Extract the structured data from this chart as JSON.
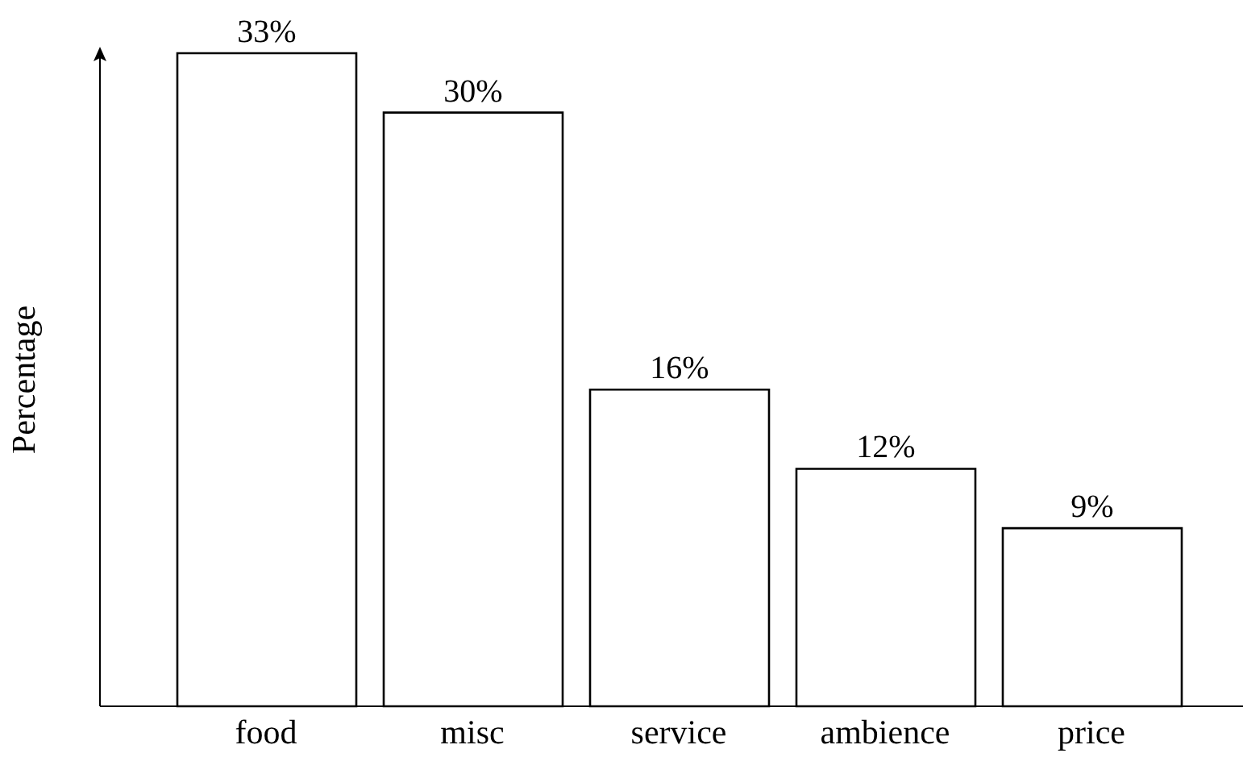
{
  "chart_data": {
    "type": "bar",
    "ylabel": "Percentage",
    "categories": [
      "food",
      "misc",
      "service",
      "ambience",
      "price"
    ],
    "values": [
      33,
      30,
      16,
      12,
      9
    ],
    "value_labels": [
      "33%",
      "30%",
      "16%",
      "12%",
      "9%"
    ],
    "color": "#ffffff",
    "tick_labels": "x"
  }
}
